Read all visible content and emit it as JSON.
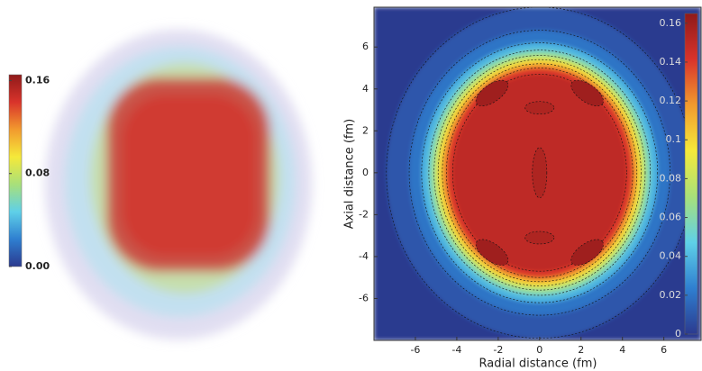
{
  "chart_data": [
    {
      "type": "volume",
      "clim": [
        0,
        0.165
      ],
      "colormap": [
        "#2b3a8f",
        "#2f7fd0",
        "#5fd0e8",
        "#a8e07a",
        "#f5e93a",
        "#f29a2e",
        "#d9332b",
        "#8f1a1a"
      ],
      "cticks": [
        {
          "value": 0,
          "label": "0.00"
        },
        0.08,
        0.16
      ]
    },
    {
      "type": "heatmap",
      "xlabel": "Radial distance (fm)",
      "ylabel": "Axial distance (fm)",
      "xlim": [
        -8,
        7.8
      ],
      "ylim": [
        -8,
        7.9
      ],
      "xticks": [
        -6,
        -4,
        -2,
        0,
        2,
        4,
        6
      ],
      "yticks": [
        -6,
        -4,
        -2,
        0,
        2,
        4,
        6
      ],
      "clim": [
        0,
        0.165
      ],
      "colormap": [
        "#2b3a8f",
        "#2f7fd0",
        "#5fd0e8",
        "#a8e07a",
        "#f5e93a",
        "#f29a2e",
        "#d9332b",
        "#8f1a1a"
      ],
      "cticks": [
        0,
        0.02,
        0.04,
        0.06,
        0.08,
        0.1,
        0.12,
        0.14,
        0.16
      ],
      "regions": [
        {
          "level": 0.01,
          "rx": 7.4,
          "ry": 7.9
        },
        {
          "level": 0.02,
          "rx": 6.3,
          "ry": 6.8
        },
        {
          "level": 0.04,
          "rx": 5.7,
          "ry": 6.2
        },
        {
          "level": 0.06,
          "rx": 5.35,
          "ry": 5.85
        },
        {
          "level": 0.08,
          "rx": 5.1,
          "ry": 5.6
        },
        {
          "level": 0.1,
          "rx": 4.9,
          "ry": 5.4
        },
        {
          "level": 0.12,
          "rx": 4.7,
          "ry": 5.2
        },
        {
          "level": 0.14,
          "rx": 4.5,
          "ry": 5.0
        },
        {
          "level": 0.15,
          "rx": 4.2,
          "ry": 4.7
        }
      ],
      "spots": [
        {
          "x": -2.3,
          "y": 3.8,
          "level": 0.16,
          "rx": 0.9,
          "ry": 0.42,
          "tilt": -35
        },
        {
          "x": 2.3,
          "y": 3.8,
          "level": 0.16,
          "rx": 0.9,
          "ry": 0.42,
          "tilt": 35
        },
        {
          "x": -2.3,
          "y": -3.8,
          "level": 0.16,
          "rx": 0.9,
          "ry": 0.42,
          "tilt": 35
        },
        {
          "x": 2.3,
          "y": -3.8,
          "level": 0.16,
          "rx": 0.9,
          "ry": 0.42,
          "tilt": -35
        },
        {
          "x": 0,
          "y": 3.1,
          "level": 0.155,
          "rx": 0.7,
          "ry": 0.3,
          "tilt": 0
        },
        {
          "x": 0,
          "y": -3.1,
          "level": 0.155,
          "rx": 0.7,
          "ry": 0.3,
          "tilt": 0
        },
        {
          "x": 0,
          "y": 0,
          "level": 0.155,
          "rx": 0.35,
          "ry": 1.2,
          "tilt": 0
        }
      ]
    }
  ]
}
